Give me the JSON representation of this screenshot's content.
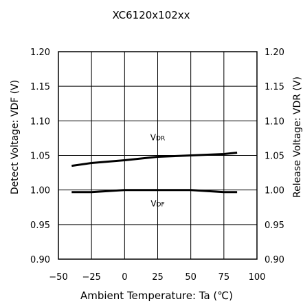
{
  "chart_data": {
    "type": "line",
    "title": "XC6120x102xx",
    "xlabel": "Ambient Temperature: Ta (℃)",
    "ylabel_left": "Detect Voltage: VDF (V)",
    "ylabel_right": "Release Voltage: VDR (V)",
    "xlim": [
      -50,
      100
    ],
    "ylim": [
      0.9,
      1.2
    ],
    "x_ticks": [
      "−50",
      "−25",
      "0",
      "25",
      "50",
      "75",
      "100"
    ],
    "y_ticks_left": [
      "1.20",
      "1.15",
      "1.10",
      "1.05",
      "1.00",
      "0.95",
      "0.90"
    ],
    "y_ticks_right": [
      "1.20",
      "1.15",
      "1.10",
      "1.05",
      "1.00",
      "0.95",
      "0.90"
    ],
    "grid": true,
    "series": [
      {
        "name": "VDR",
        "name_main": "V",
        "name_sub": "DR",
        "x": [
          -40,
          -25,
          0,
          25,
          50,
          75,
          85
        ],
        "y": [
          1.035,
          1.039,
          1.043,
          1.048,
          1.05,
          1.052,
          1.054
        ],
        "label_at": [
          25,
          1.072
        ]
      },
      {
        "name": "VDF",
        "name_main": "V",
        "name_sub": "DF",
        "x": [
          -40,
          -25,
          0,
          25,
          50,
          75,
          85
        ],
        "y": [
          0.997,
          0.997,
          1.0,
          1.0,
          1.0,
          0.997,
          0.997
        ],
        "label_at": [
          25,
          0.976
        ]
      }
    ],
    "line_color": "#000000"
  }
}
